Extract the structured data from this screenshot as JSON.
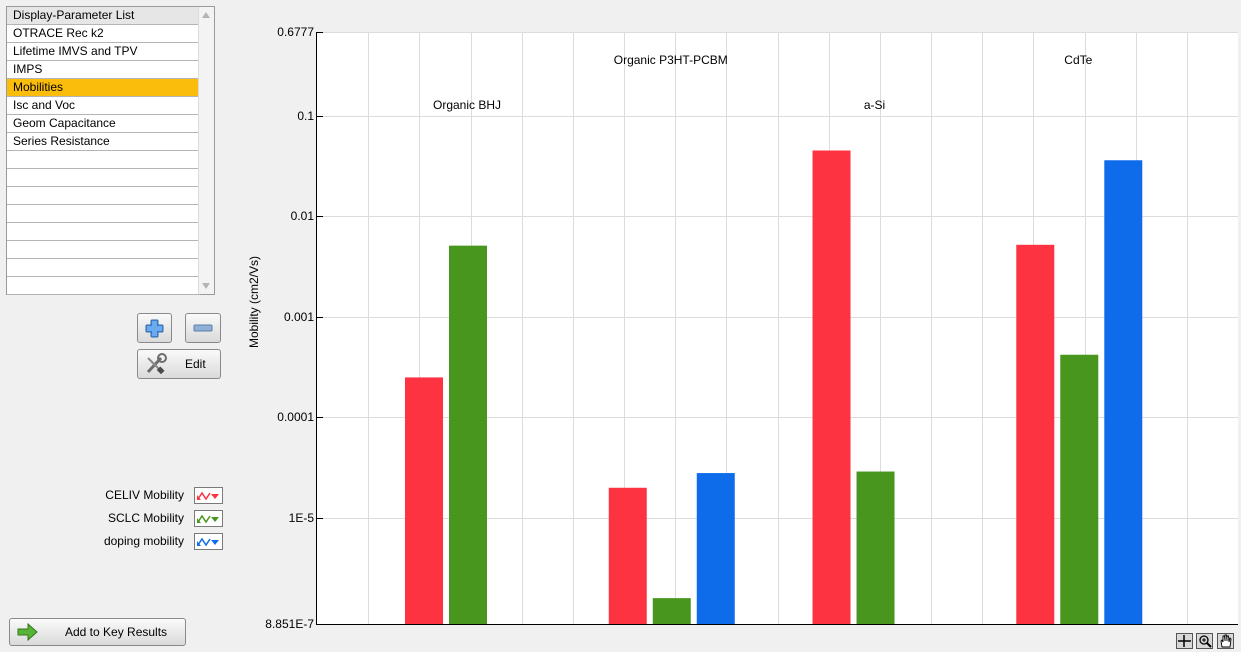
{
  "param_list": {
    "header": "Display-Parameter List",
    "items": [
      "OTRACE Rec k2",
      "Lifetime IMVS and TPV",
      "IMPS",
      "Mobilities",
      "Isc and Voc",
      "Geom Capacitance",
      "Series Resistance",
      "",
      "",
      "",
      "",
      "",
      "",
      "",
      ""
    ],
    "selected_index": 3,
    "selected_color": "#fbbd0b"
  },
  "buttons": {
    "add_icon": "plus-icon",
    "remove_icon": "minus-icon",
    "edit_label": "Edit",
    "edit_icon": "wrench-screwdriver-icon",
    "add_key_label": "Add to Key Results",
    "add_key_icon": "green-arrow-icon"
  },
  "legend": [
    {
      "label": "CELIV Mobility",
      "color": "#fe3341"
    },
    {
      "label": "SCLC Mobility",
      "color": "#48961d"
    },
    {
      "label": "doping mobility",
      "color": "#0e6ceb"
    }
  ],
  "graph_tools": [
    "cursor-icon",
    "zoom-icon",
    "pan-hand-icon"
  ],
  "chart_data": {
    "type": "bar",
    "ylabel": "Mobility (cm2/Vs)",
    "yscale": "log",
    "ylim": [
      8.851e-07,
      0.6777
    ],
    "ytick_labels": [
      "0.6777",
      "0.1",
      "0.01",
      "0.001",
      "0.0001",
      "1E-5",
      "8.851E-7"
    ],
    "ytick_values": [
      0.6777,
      0.1,
      0.01,
      0.001,
      0.0001,
      1e-05,
      8.851e-07
    ],
    "grid": true,
    "categories": [
      "Organic BHJ",
      "Organic P3HT-PCBM",
      "a-Si",
      "CdTe"
    ],
    "series": [
      {
        "name": "CELIV Mobility",
        "color": "#fe3341",
        "values": [
          0.00025,
          2e-05,
          0.045,
          0.0052
        ]
      },
      {
        "name": "SCLC Mobility",
        "color": "#48961d",
        "values": [
          0.0051,
          1.6e-06,
          2.9e-05,
          0.00042
        ]
      },
      {
        "name": "doping mobility",
        "color": "#0e6ceb",
        "values": [
          null,
          2.8e-05,
          null,
          0.036
        ]
      }
    ]
  }
}
